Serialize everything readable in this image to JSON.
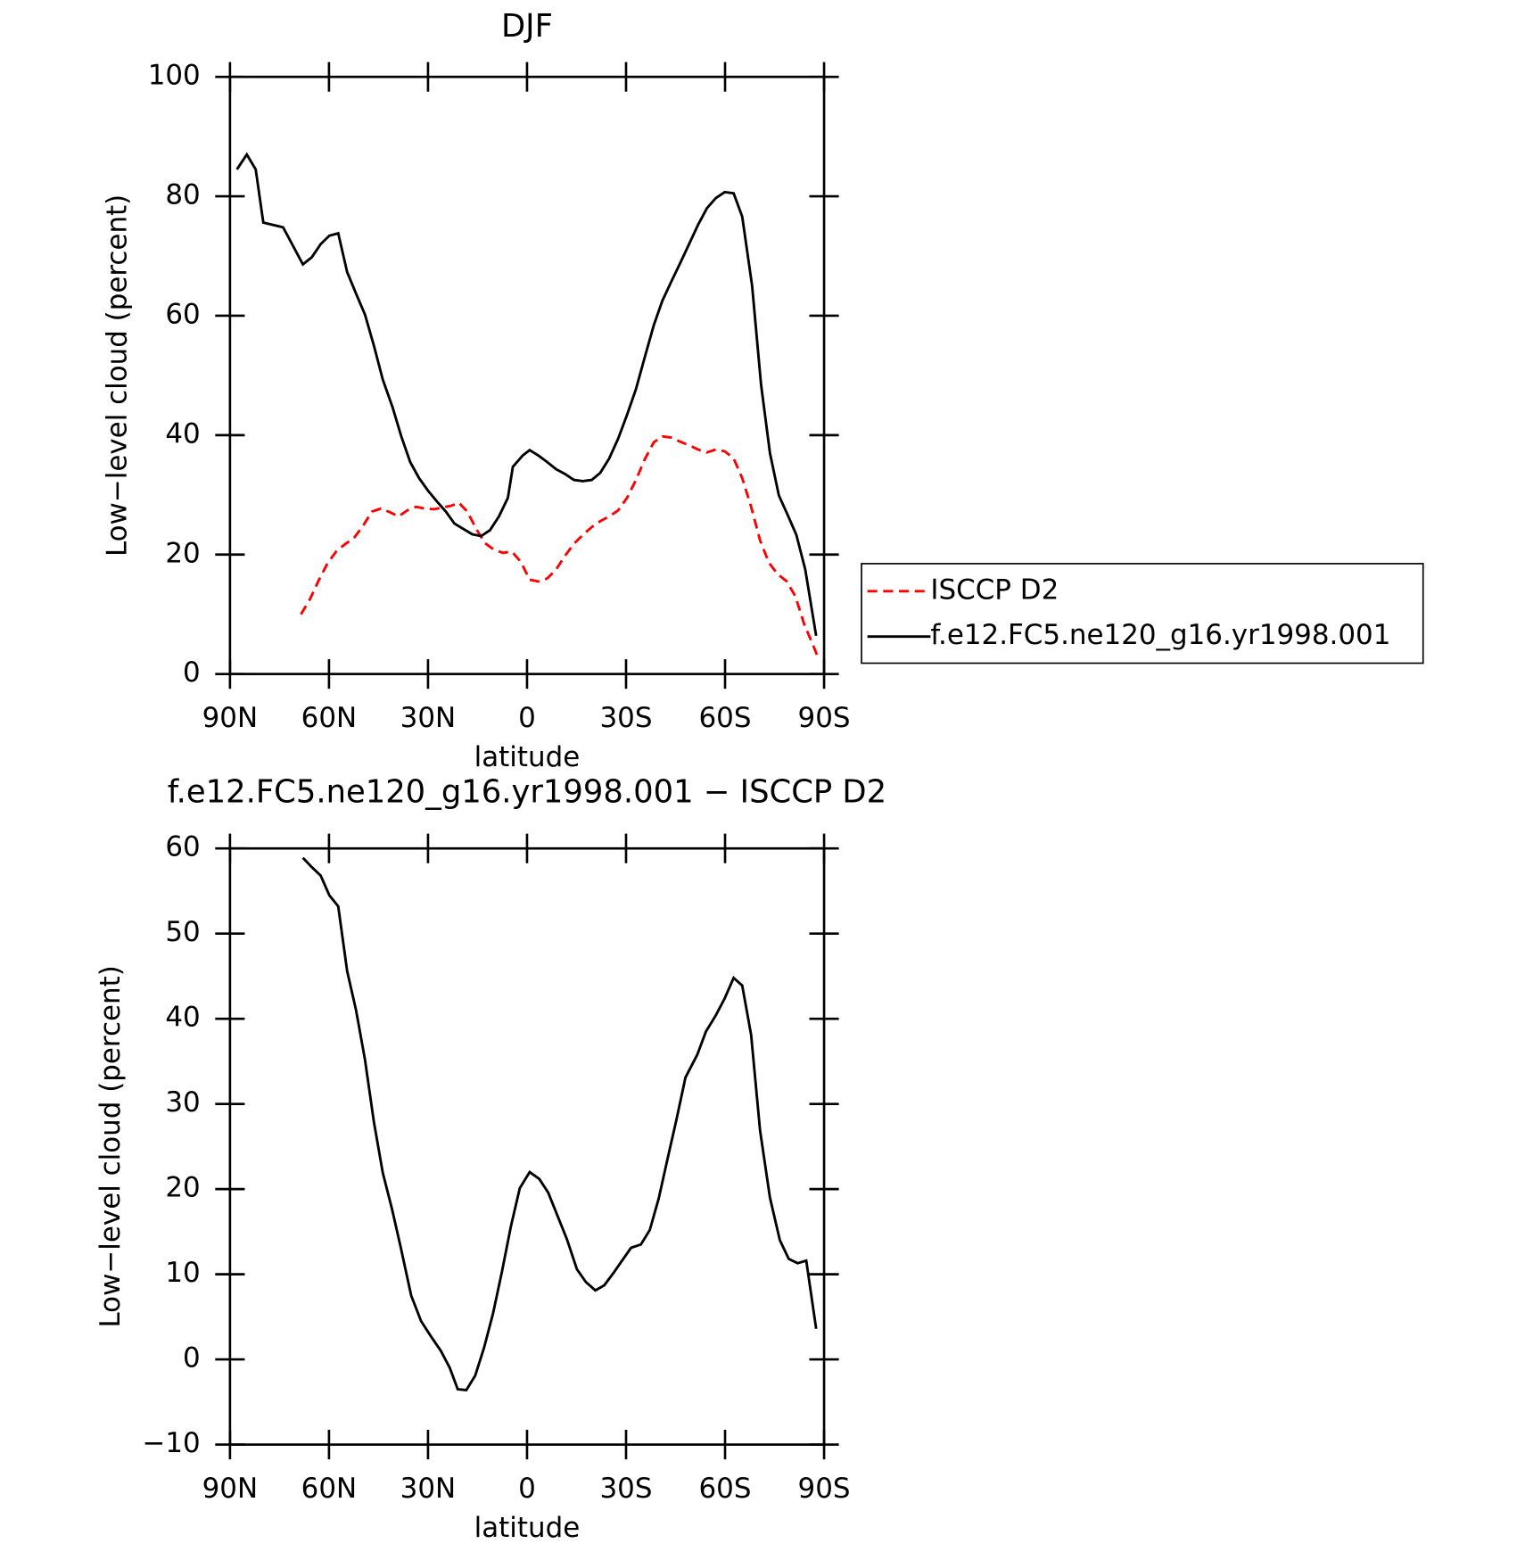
{
  "chart_data": [
    {
      "type": "line",
      "title": "DJF",
      "xlabel": "latitude",
      "ylabel": "Low−level cloud (percent)",
      "xlim": [
        90,
        -90
      ],
      "ylim": [
        0,
        100
      ],
      "xticks": [
        {
          "value": 90,
          "label": "90N"
        },
        {
          "value": 60,
          "label": "60N"
        },
        {
          "value": 30,
          "label": "30N"
        },
        0,
        {
          "value": -30,
          "label": "30S"
        },
        {
          "value": -60,
          "label": "60S"
        },
        {
          "value": -90,
          "label": "90S"
        }
      ],
      "yticks": [
        0,
        20,
        40,
        60,
        80,
        100
      ],
      "legend": "right",
      "series": [
        {
          "name": "ISCCP D2",
          "color": "#ff0000",
          "dash": true,
          "x": [
            68.5,
            65.8,
            63.1,
            60.4,
            57.7,
            55,
            52.4,
            49.7,
            47,
            44.3,
            41.6,
            38.9,
            36.3,
            33.6,
            30.9,
            28.2,
            25.5,
            22.8,
            20.7,
            18.1,
            15.4,
            12.7,
            10,
            7.3,
            4.6,
            1.9,
            -0.8,
            -3.4,
            -6.1,
            -8.8,
            -11.5,
            -14.2,
            -16.9,
            -19.6,
            -22.2,
            -24.9,
            -27.6,
            -30.3,
            -33,
            -35.7,
            -38.4,
            -41,
            -43.7,
            -46.4,
            -49.1,
            -51.8,
            -54.5,
            -57.2,
            -59.9,
            -62.6,
            -65.2,
            -67.9,
            -70.6,
            -73.3,
            -76,
            -78.7,
            -81.3,
            -84,
            -86.7,
            -87.9
          ],
          "values": [
            10,
            12.5,
            15.7,
            18.6,
            20.6,
            21.8,
            22.8,
            24.8,
            27.2,
            27.7,
            27.1,
            26.4,
            27.4,
            28,
            27.7,
            27.6,
            27.9,
            28.2,
            28.7,
            27.2,
            24.3,
            21.9,
            20.8,
            20.3,
            20.5,
            18.8,
            15.8,
            15.5,
            16,
            17.5,
            19.8,
            21.8,
            23.3,
            24.6,
            25.6,
            26.4,
            27.4,
            29.5,
            32.5,
            36,
            38.8,
            39.8,
            39.6,
            38.9,
            38.3,
            37.6,
            37.1,
            37.6,
            37.3,
            36.1,
            32.8,
            28,
            22.4,
            18.6,
            16.7,
            15.5,
            13,
            8.3,
            4.8,
            3.1
          ]
        },
        {
          "name": "f.e12.FC5.ne120_g16.yr1998.001",
          "color": "#000000",
          "dash": false,
          "x": [
            87.9,
            84.9,
            82.2,
            79.9,
            73.9,
            67.9,
            65.2,
            62.5,
            59.9,
            57.2,
            54.5,
            51.8,
            49.1,
            46.4,
            43.7,
            40.7,
            38.1,
            35.4,
            32.7,
            30,
            27.3,
            24.6,
            22,
            19.3,
            16.6,
            13.9,
            11.2,
            8.5,
            5.8,
            4.3,
            1.3,
            -0.8,
            -3.4,
            -6.1,
            -8.8,
            -11.5,
            -14.2,
            -16.9,
            -19.6,
            -22.2,
            -24.9,
            -27.6,
            -30.3,
            -33,
            -35.7,
            -38.4,
            -41,
            -43.7,
            -46.4,
            -49.1,
            -51.8,
            -54.5,
            -57.2,
            -59.9,
            -62.6,
            -65.2,
            -68.2,
            -70.9,
            -73.6,
            -76.3,
            -79,
            -81.6,
            -84.3,
            -87.6
          ],
          "values": [
            84.5,
            87,
            84.5,
            75.6,
            74.8,
            68.6,
            69.8,
            72,
            73.4,
            73.8,
            67.3,
            63.7,
            60.2,
            55,
            49.3,
            44.6,
            39.8,
            35.5,
            32.8,
            30.7,
            28.9,
            27.2,
            25.2,
            24.3,
            23.4,
            23.1,
            24.1,
            26.4,
            29.5,
            34.7,
            36.6,
            37.5,
            36.6,
            35.5,
            34.3,
            33.5,
            32.5,
            32.3,
            32.5,
            33.7,
            36.1,
            39.4,
            43.4,
            47.7,
            53.1,
            58.4,
            62.5,
            65.7,
            68.8,
            72,
            75.2,
            78,
            79.7,
            80.7,
            80.5,
            76.6,
            65,
            48.5,
            37,
            29.9,
            26.6,
            23.3,
            17.5,
            6.4
          ]
        }
      ]
    },
    {
      "type": "line",
      "title": "f.e12.FC5.ne120_g16.yr1998.001 − ISCCP D2",
      "xlabel": "latitude",
      "ylabel": "Low−level cloud (percent)",
      "xlim": [
        90,
        -90
      ],
      "ylim": [
        -10,
        60
      ],
      "xticks": [
        {
          "value": 90,
          "label": "90N"
        },
        {
          "value": 60,
          "label": "60N"
        },
        {
          "value": 30,
          "label": "30N"
        },
        0,
        {
          "value": -30,
          "label": "30S"
        },
        {
          "value": -60,
          "label": "60S"
        },
        {
          "value": -90,
          "label": "90S"
        }
      ],
      "yticks": [
        {
          "value": -10,
          "label": "−10"
        },
        0,
        10,
        20,
        30,
        40,
        50,
        60
      ],
      "series": [
        {
          "color": "#000000",
          "dash": false,
          "x": [
            67.9,
            65.2,
            62.5,
            59.9,
            57.2,
            54.5,
            51.8,
            49.1,
            46.4,
            43.7,
            41,
            38.4,
            35.1,
            32.1,
            29.1,
            26.1,
            23.4,
            21,
            18.4,
            15.7,
            13,
            10.3,
            7.6,
            4.9,
            2.2,
            -0.8,
            -3.7,
            -6.4,
            -9.1,
            -12.1,
            -15.1,
            -17.8,
            -20.7,
            -23.4,
            -26.1,
            -28.8,
            -31.5,
            -34.5,
            -37.2,
            -39.9,
            -42.6,
            -45.3,
            -48,
            -51.6,
            -54.2,
            -57.2,
            -59.9,
            -62.6,
            -65.2,
            -67.9,
            -70.6,
            -73.6,
            -76.6,
            -79.3,
            -82,
            -84.6,
            -87.6
          ],
          "values": [
            58.9,
            57.8,
            56.8,
            54.5,
            53.2,
            45.6,
            41,
            35.2,
            27.9,
            21.9,
            17.8,
            13.4,
            7.5,
            4.5,
            2.7,
            1,
            -1,
            -3.5,
            -3.6,
            -1.9,
            1.4,
            5.4,
            10.3,
            15.6,
            20.1,
            22,
            21.2,
            19.6,
            17,
            14.1,
            10.6,
            9.1,
            8.1,
            8.7,
            10.1,
            11.6,
            13.1,
            13.5,
            15.2,
            18.9,
            23.6,
            28.2,
            33.1,
            35.8,
            38.5,
            40.4,
            42.4,
            44.8,
            43.9,
            38.1,
            26.9,
            19,
            14,
            11.8,
            11.3,
            11.6,
            3.6
          ]
        }
      ]
    }
  ]
}
